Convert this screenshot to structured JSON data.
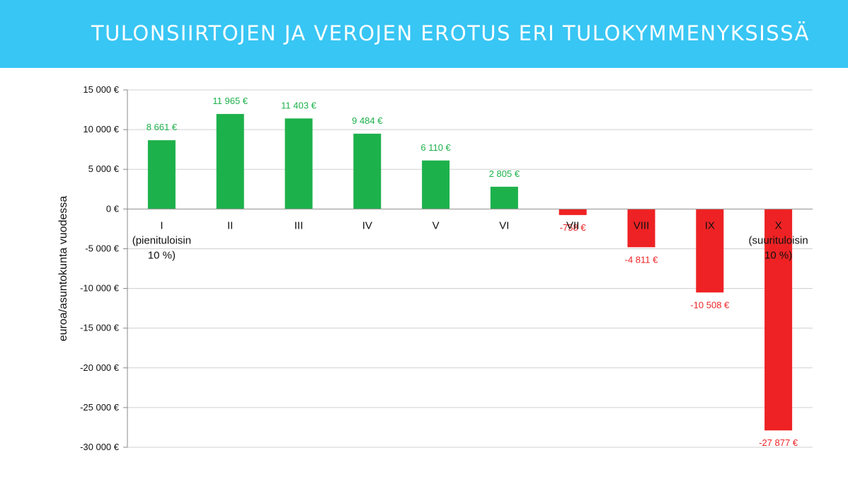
{
  "header": {
    "title": "TULONSIIRTOJEN JA VEROJEN EROTUS ERI TULOKYMMENYKSISSÄ"
  },
  "colors": {
    "header_bg": "#38c6f4",
    "positive": "#1db14b",
    "negative": "#ee2224",
    "grid": "#d0d0d0"
  },
  "chart_data": {
    "type": "bar",
    "title": "TULONSIIRTOJEN JA VEROJEN EROTUS ERI TULOKYMMENYKSISSÄ",
    "ylabel": "euroa/asuntokunta vuodessa",
    "xlabel": "",
    "ylim": [
      -30000,
      15000
    ],
    "yticks": [
      15000,
      10000,
      5000,
      0,
      -5000,
      -10000,
      -15000,
      -20000,
      -25000,
      -30000
    ],
    "ytick_labels": [
      "15 000 €",
      "10 000 €",
      "5 000 €",
      "0 €",
      "-5 000 €",
      "-10 000 €",
      "-15 000 €",
      "-20 000 €",
      "-25 000 €",
      "-30 000 €"
    ],
    "categories": [
      [
        "I",
        "(pienituloisin",
        "10 %)"
      ],
      [
        "II"
      ],
      [
        "III"
      ],
      [
        "IV"
      ],
      [
        "V"
      ],
      [
        "VI"
      ],
      [
        "VII"
      ],
      [
        "VIII"
      ],
      [
        "IX"
      ],
      [
        "X",
        "(suurituloisin",
        "10 %)"
      ]
    ],
    "values": [
      8661,
      11965,
      11403,
      9484,
      6110,
      2805,
      -758,
      -4811,
      -10508,
      -27877
    ],
    "value_labels": [
      "8 661 €",
      "11 965 €",
      "11 403 €",
      "9 484 €",
      "6 110 €",
      "2 805 €",
      "-758 €",
      "-4 811 €",
      "-10 508 €",
      "-27 877 €"
    ],
    "grid": true
  }
}
